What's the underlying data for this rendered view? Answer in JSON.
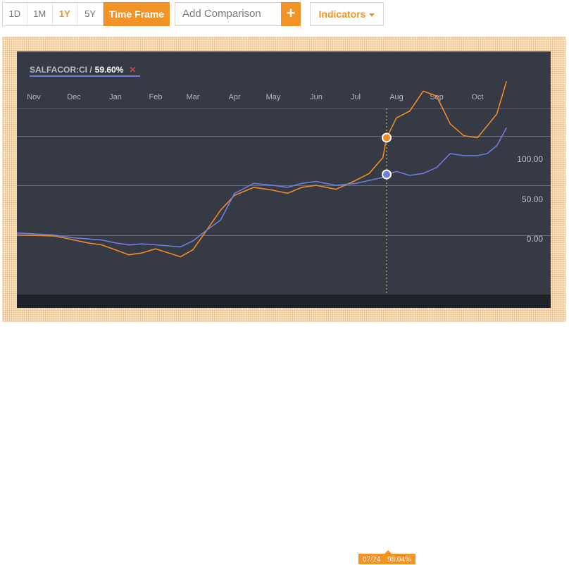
{
  "toolbar": {
    "ranges": [
      {
        "label": "1D",
        "active": false
      },
      {
        "label": "1M",
        "active": false
      },
      {
        "label": "1Y",
        "active": true
      },
      {
        "label": "5Y",
        "active": false
      }
    ],
    "time_frame_label": "Time Frame",
    "comparison_placeholder": "Add Comparison",
    "add_label": "+",
    "indicators_label": "Indicators"
  },
  "legend": {
    "symbol": "SALFACOR:CI /",
    "change": "59.60%",
    "remove_label": "✕"
  },
  "tooltip": {
    "date": "07/24",
    "value": "98.04%"
  },
  "colors": {
    "accent": "#f39325",
    "series_orange": "#f08c25",
    "series_blue": "#6d7de0",
    "chart_bg": "#353a45"
  },
  "chart_data": {
    "type": "line",
    "x_ticks": [
      "Nov",
      "Dec",
      "Jan",
      "Feb",
      "Mar",
      "Apr",
      "May",
      "Jun",
      "Jul",
      "Aug",
      "Sep",
      "Oct"
    ],
    "y_ticks": [
      "100.00",
      "50.00",
      "0.00"
    ],
    "ylim": [
      -60,
      185
    ],
    "grid": true,
    "cursor_x": "07/24",
    "series": [
      {
        "color": "#f08c25",
        "points": [
          [
            "Nov",
            0
          ],
          [
            "Nov",
            -1
          ],
          [
            "Dec",
            -5
          ],
          [
            "Dec",
            -8
          ],
          [
            "Dec",
            -10
          ],
          [
            "Jan",
            -15
          ],
          [
            "Jan",
            -20
          ],
          [
            "Jan",
            -18
          ],
          [
            "Feb",
            -14
          ],
          [
            "Feb",
            -18
          ],
          [
            "Feb",
            -22
          ],
          [
            "Mar",
            -15
          ],
          [
            "Mar",
            5
          ],
          [
            "Mar",
            25
          ],
          [
            "Apr",
            40
          ],
          [
            "Apr",
            48
          ],
          [
            "May",
            45
          ],
          [
            "May",
            42
          ],
          [
            "May",
            48
          ],
          [
            "Jun",
            50
          ],
          [
            "Jun",
            46
          ],
          [
            "Jul",
            55
          ],
          [
            "Jul",
            62
          ],
          [
            "Jul",
            78
          ],
          [
            "07/24",
            98.04
          ],
          [
            "Aug",
            118
          ],
          [
            "Aug",
            125
          ],
          [
            "Aug",
            145
          ],
          [
            "Sep",
            140
          ],
          [
            "Sep",
            112
          ],
          [
            "Sep",
            100
          ],
          [
            "Oct",
            98
          ],
          [
            "Oct",
            110
          ],
          [
            "Oct",
            122
          ],
          [
            "Oct",
            155
          ]
        ]
      },
      {
        "color": "#6d7de0",
        "points": [
          [
            "Nov",
            2
          ],
          [
            "Nov",
            0
          ],
          [
            "Dec",
            -3
          ],
          [
            "Dec",
            -4
          ],
          [
            "Dec",
            -5
          ],
          [
            "Jan",
            -8
          ],
          [
            "Jan",
            -10
          ],
          [
            "Jan",
            -9
          ],
          [
            "Feb",
            -10
          ],
          [
            "Feb",
            -11
          ],
          [
            "Feb",
            -12
          ],
          [
            "Mar",
            -6
          ],
          [
            "Mar",
            5
          ],
          [
            "Mar",
            15
          ],
          [
            "Apr",
            42
          ],
          [
            "Apr",
            52
          ],
          [
            "May",
            50
          ],
          [
            "May",
            48
          ],
          [
            "May",
            52
          ],
          [
            "Jun",
            54
          ],
          [
            "Jun",
            50
          ],
          [
            "Jul",
            52
          ],
          [
            "Jul",
            55
          ],
          [
            "Jul",
            58
          ],
          [
            "07/24",
            61
          ],
          [
            "Aug",
            64
          ],
          [
            "Aug",
            60
          ],
          [
            "Aug",
            62
          ],
          [
            "Sep",
            68
          ],
          [
            "Sep",
            82
          ],
          [
            "Sep",
            80
          ],
          [
            "Oct",
            80
          ],
          [
            "Oct",
            82
          ],
          [
            "Oct",
            90
          ],
          [
            "Oct",
            108
          ]
        ]
      }
    ]
  }
}
